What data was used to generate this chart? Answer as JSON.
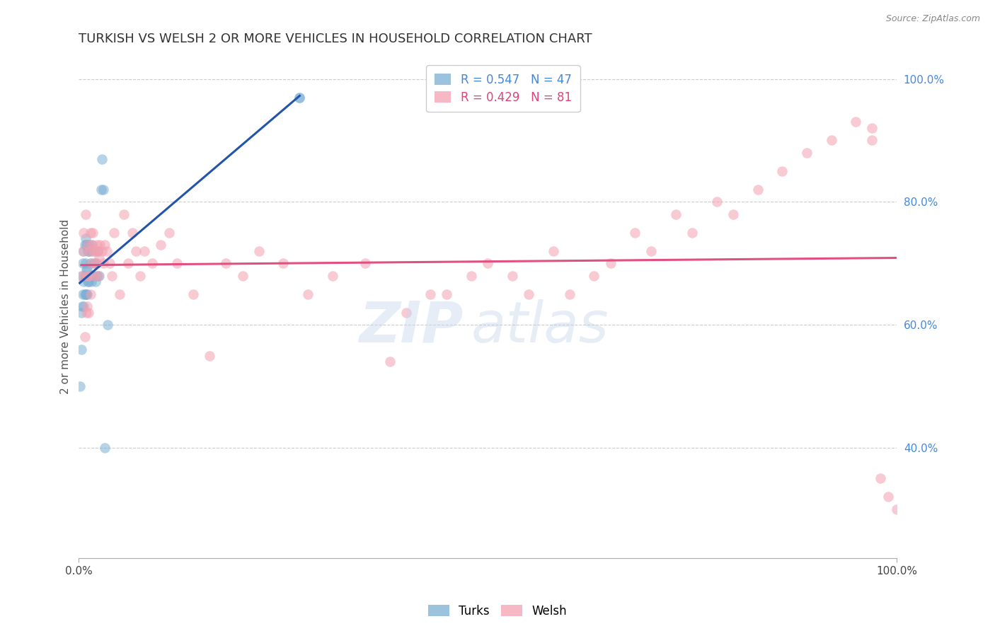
{
  "title": "TURKISH VS WELSH 2 OR MORE VEHICLES IN HOUSEHOLD CORRELATION CHART",
  "source": "Source: ZipAtlas.com",
  "ylabel": "2 or more Vehicles in Household",
  "legend": {
    "turks_R": 0.547,
    "turks_N": 47,
    "welsh_R": 0.429,
    "welsh_N": 81
  },
  "turks_color": "#7bafd4",
  "welsh_color": "#f4a0b0",
  "turks_line_color": "#2255aa",
  "welsh_line_color": "#e05080",
  "grid_color": "#cccccc",
  "turks_x": [
    0.001,
    0.003,
    0.003,
    0.004,
    0.004,
    0.005,
    0.005,
    0.006,
    0.006,
    0.006,
    0.007,
    0.007,
    0.007,
    0.008,
    0.008,
    0.008,
    0.009,
    0.009,
    0.009,
    0.01,
    0.01,
    0.01,
    0.011,
    0.011,
    0.012,
    0.012,
    0.013,
    0.013,
    0.014,
    0.015,
    0.015,
    0.016,
    0.016,
    0.018,
    0.019,
    0.02,
    0.021,
    0.022,
    0.023,
    0.025,
    0.027,
    0.028,
    0.03,
    0.032,
    0.035,
    0.27,
    0.27
  ],
  "turks_y": [
    0.5,
    0.56,
    0.62,
    0.63,
    0.68,
    0.65,
    0.7,
    0.63,
    0.67,
    0.72,
    0.65,
    0.68,
    0.73,
    0.65,
    0.7,
    0.74,
    0.65,
    0.69,
    0.73,
    0.65,
    0.69,
    0.73,
    0.67,
    0.72,
    0.67,
    0.72,
    0.68,
    0.73,
    0.7,
    0.67,
    0.72,
    0.68,
    0.73,
    0.68,
    0.7,
    0.67,
    0.7,
    0.68,
    0.72,
    0.68,
    0.82,
    0.87,
    0.82,
    0.4,
    0.6,
    0.97,
    0.97
  ],
  "welsh_x": [
    0.003,
    0.005,
    0.006,
    0.007,
    0.008,
    0.009,
    0.01,
    0.01,
    0.011,
    0.012,
    0.012,
    0.013,
    0.014,
    0.014,
    0.015,
    0.016,
    0.017,
    0.018,
    0.019,
    0.02,
    0.021,
    0.022,
    0.023,
    0.024,
    0.025,
    0.026,
    0.028,
    0.03,
    0.032,
    0.034,
    0.038,
    0.04,
    0.043,
    0.05,
    0.055,
    0.06,
    0.065,
    0.07,
    0.075,
    0.08,
    0.09,
    0.1,
    0.11,
    0.12,
    0.14,
    0.16,
    0.18,
    0.2,
    0.22,
    0.25,
    0.28,
    0.31,
    0.35,
    0.38,
    0.4,
    0.43,
    0.45,
    0.48,
    0.5,
    0.53,
    0.55,
    0.58,
    0.6,
    0.63,
    0.65,
    0.68,
    0.7,
    0.73,
    0.75,
    0.78,
    0.8,
    0.83,
    0.86,
    0.89,
    0.92,
    0.95,
    0.97,
    0.97,
    0.98,
    0.99,
    1.0
  ],
  "welsh_y": [
    0.68,
    0.72,
    0.75,
    0.58,
    0.78,
    0.62,
    0.63,
    0.68,
    0.73,
    0.62,
    0.68,
    0.72,
    0.75,
    0.65,
    0.7,
    0.73,
    0.75,
    0.72,
    0.68,
    0.72,
    0.7,
    0.73,
    0.72,
    0.68,
    0.71,
    0.73,
    0.72,
    0.7,
    0.73,
    0.72,
    0.7,
    0.68,
    0.75,
    0.65,
    0.78,
    0.7,
    0.75,
    0.72,
    0.68,
    0.72,
    0.7,
    0.73,
    0.75,
    0.7,
    0.65,
    0.55,
    0.7,
    0.68,
    0.72,
    0.7,
    0.65,
    0.68,
    0.7,
    0.54,
    0.62,
    0.65,
    0.65,
    0.68,
    0.7,
    0.68,
    0.65,
    0.72,
    0.65,
    0.68,
    0.7,
    0.75,
    0.72,
    0.78,
    0.75,
    0.8,
    0.78,
    0.82,
    0.85,
    0.88,
    0.9,
    0.93,
    0.92,
    0.9,
    0.35,
    0.32,
    0.3
  ],
  "ytick_positions": [
    0.4,
    0.6,
    0.8,
    1.0
  ],
  "ytick_labels": [
    "40.0%",
    "60.0%",
    "80.0%",
    "100.0%"
  ],
  "xlim": [
    0.0,
    1.0
  ],
  "ylim": [
    0.22,
    1.04
  ]
}
